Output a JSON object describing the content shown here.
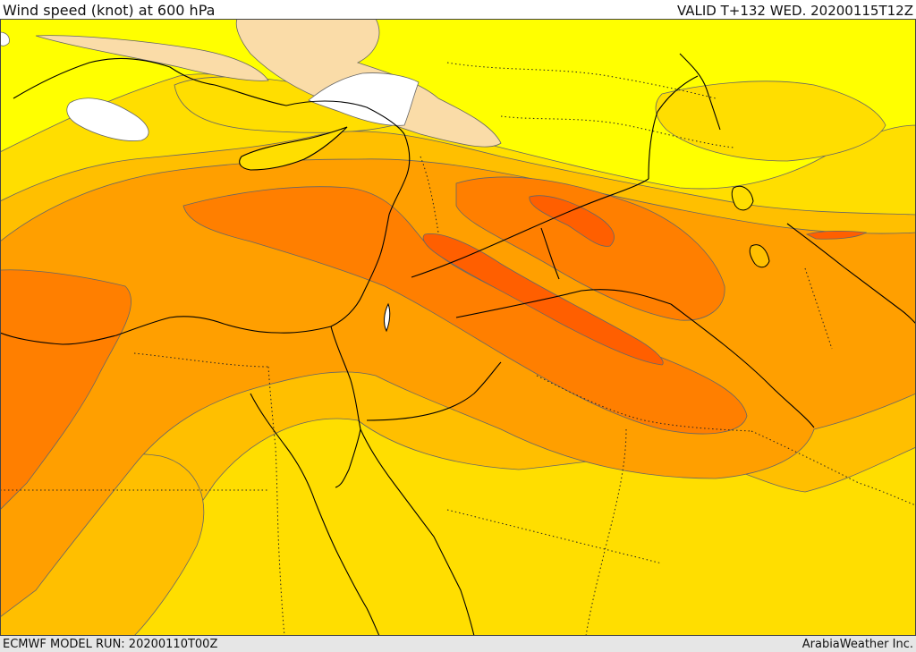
{
  "header": {
    "title": "Wind speed (knot) at 600 hPa",
    "valid": "VALID T+132 WED. 20200115T12Z"
  },
  "footer": {
    "model_run": "ECMWF MODEL RUN: 20200110T00Z",
    "credit": "ArabiaWeather Inc."
  },
  "map": {
    "variable": "wind speed",
    "units": "knot",
    "pressure_level": "600 hPa",
    "colors": {
      "no_fill": "#ffffff",
      "tan": "#fadca8",
      "yellow": "#ffff00",
      "gold": "#ffde00",
      "amber": "#ffbf00",
      "orange": "#ff9f00",
      "dark_orange": "#ff7f00",
      "red_orange": "#ff5f00",
      "contour": "#555555",
      "coast": "#000000"
    }
  }
}
